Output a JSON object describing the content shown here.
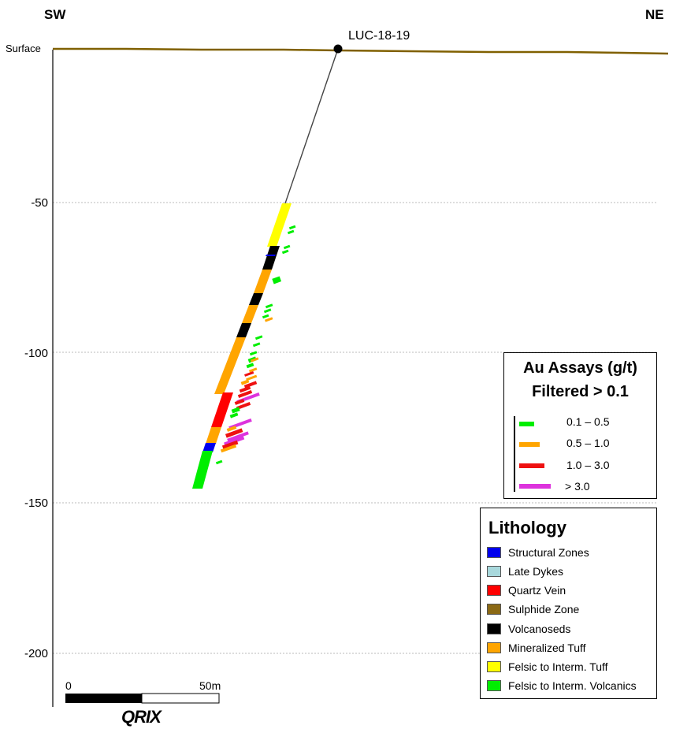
{
  "section": {
    "left_label": "SW",
    "right_label": "NE",
    "surface_label": "Surface",
    "hole_label": "LUC-18-19",
    "depth_ticks": [
      "-50",
      "-100",
      "-150",
      "-200"
    ],
    "scale_bar": {
      "start_label": "0",
      "end_label": "50m"
    },
    "logo_text": "QRIX",
    "colors": {
      "surface": "#806000",
      "trace": "#444444",
      "grid": "#bbbbbb"
    }
  },
  "au_legend": {
    "title_line1": "Au Assays (g/t)",
    "title_line2": "Filtered > 0.1",
    "items": [
      {
        "label": "0.1 – 0.5",
        "color": "#00ee00"
      },
      {
        "label": "0.5 – 1.0",
        "color": "#ffa500"
      },
      {
        "label": "1.0 – 3.0",
        "color": "#ee1111"
      },
      {
        "label": "> 3.0",
        "color": "#dd33dd"
      }
    ]
  },
  "lithology_legend": {
    "title": "Lithology",
    "items": [
      {
        "label": "Structural Zones",
        "color": "#0000ee"
      },
      {
        "label": "Late Dykes",
        "color": "#a8d8dc"
      },
      {
        "label": "Quartz Vein",
        "color": "#ff0000"
      },
      {
        "label": "Sulphide Zone",
        "color": "#8b6914"
      },
      {
        "label": "Volcanoseds",
        "color": "#000000"
      },
      {
        "label": "Mineralized Tuff",
        "color": "#ffa500"
      },
      {
        "label": "Felsic to Interm. Tuff",
        "color": "#ffff00"
      },
      {
        "label": "Felsic to Interm. Volcanics",
        "color": "#00ee00"
      }
    ]
  }
}
